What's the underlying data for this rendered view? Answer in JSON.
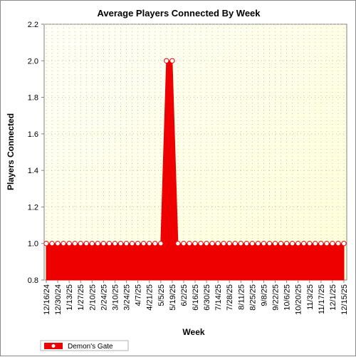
{
  "chart_data": {
    "type": "area",
    "title": "Average Players Connected By Week",
    "xlabel": "Week",
    "ylabel": "Players Connected",
    "ylim": [
      0.8,
      2.2
    ],
    "yticks": [
      "0.8",
      "1.0",
      "1.2",
      "1.4",
      "1.6",
      "1.8",
      "2.0",
      "2.2"
    ],
    "x": [
      "12/16/24",
      "12/23/24",
      "12/30/24",
      "1/6/25",
      "1/13/25",
      "1/20/25",
      "1/27/25",
      "2/3/25",
      "2/10/25",
      "2/17/25",
      "2/24/25",
      "3/3/25",
      "3/10/25",
      "3/17/25",
      "3/24/25",
      "3/31/25",
      "4/7/25",
      "4/14/25",
      "4/21/25",
      "4/28/25",
      "5/5/25",
      "5/12/25",
      "5/19/25",
      "5/26/25",
      "6/2/25",
      "6/9/25",
      "6/16/25",
      "6/23/25",
      "6/30/25",
      "7/7/25",
      "7/14/25",
      "7/21/25",
      "7/28/25",
      "8/4/25",
      "8/11/25",
      "8/18/25",
      "8/25/25",
      "9/1/25",
      "9/8/25",
      "9/15/25",
      "9/22/25",
      "9/29/25",
      "10/6/25",
      "10/13/25",
      "10/20/25",
      "10/27/25",
      "11/3/25",
      "11/10/25",
      "11/17/25",
      "11/24/25",
      "12/1/25",
      "12/8/25",
      "12/15/25"
    ],
    "x_tick_labels": [
      "12/16/24",
      "12/30/24",
      "1/13/25",
      "1/27/25",
      "2/10/25",
      "2/24/25",
      "3/10/25",
      "3/24/25",
      "4/7/25",
      "4/21/25",
      "5/5/25",
      "5/19/25",
      "6/2/25",
      "6/16/25",
      "6/30/25",
      "7/14/25",
      "7/28/25",
      "8/11/25",
      "8/25/25",
      "9/8/25",
      "9/22/25",
      "10/6/25",
      "10/20/25",
      "11/3/25",
      "11/17/25",
      "12/1/25",
      "12/15/25"
    ],
    "series": [
      {
        "name": "Demon's Gate",
        "values": [
          1,
          1,
          1,
          1,
          1,
          1,
          1,
          1,
          1,
          1,
          1,
          1,
          1,
          1,
          1,
          1,
          1,
          1,
          1,
          1,
          1,
          2,
          2,
          1,
          1,
          1,
          1,
          1,
          1,
          1,
          1,
          1,
          1,
          1,
          1,
          1,
          1,
          1,
          1,
          1,
          1,
          1,
          1,
          1,
          1,
          1,
          1,
          1,
          1,
          1,
          1,
          1,
          1
        ]
      }
    ],
    "grid": true,
    "legend": "bottom-left",
    "colors": {
      "series": "#ee0000",
      "plot_background": "#ffffe0",
      "marker_fill": "#ffffff"
    }
  }
}
